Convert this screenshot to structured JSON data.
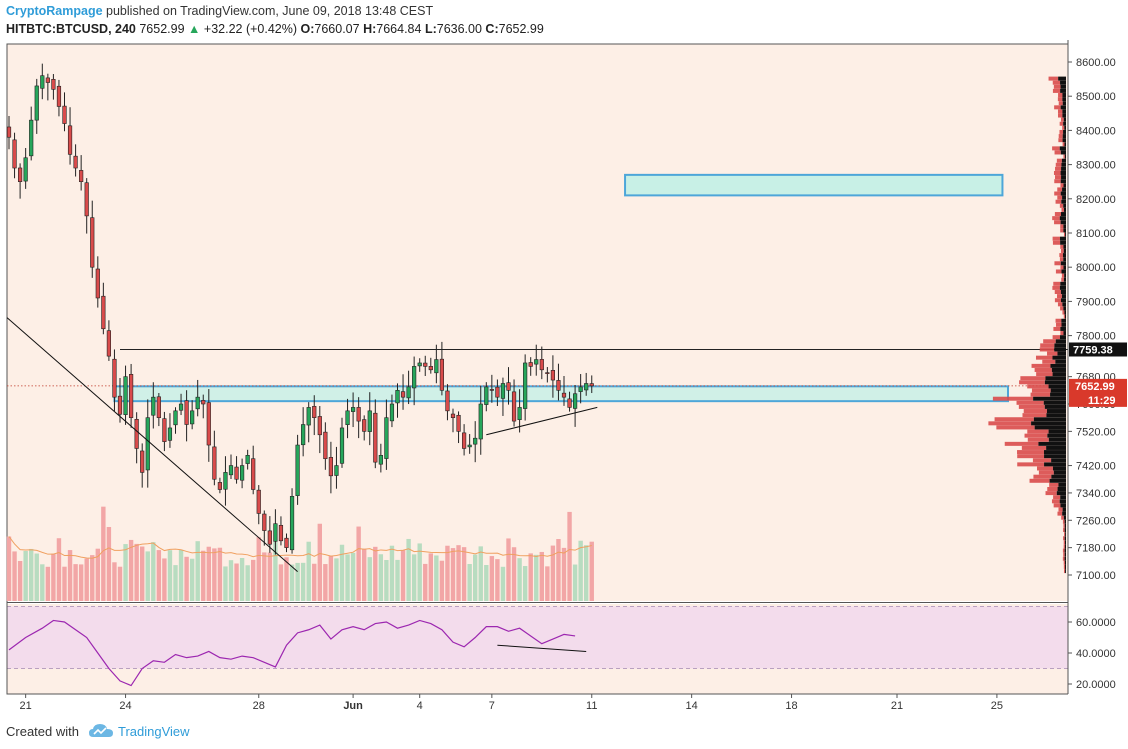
{
  "header": {
    "author": "CryptoRampage",
    "published_text": "published on TradingView.com, June 09, 2018 13:48 CEST",
    "symbol": "HITBTC:BTCUSD, 240",
    "last": "7652.99",
    "change_arrow": "▲",
    "change": "+32.22 (+0.42%)",
    "open_label": "O:",
    "open": "7660.07",
    "high_label": "H:",
    "high": "7664.84",
    "low_label": "L:",
    "low": "7636.00",
    "close_label": "C:",
    "close": "7652.99"
  },
  "footer": {
    "created_with": "Created with",
    "brand": "TradingView",
    "logo_icon": "tradingview-cloud-icon"
  },
  "colors": {
    "background": "#fdefe6",
    "up_candle": "#26a65b",
    "down_candle": "#d94b4b",
    "zone_fill": "#c8f0e6",
    "zone_stroke": "#4da6d9",
    "rsi_line": "#9c27b0",
    "rsi_band": "#f3dcec",
    "volume_up": "#b8dcc0",
    "volume_down": "#f2a6a6",
    "ma_line": "#f0a060",
    "author": "#2f9cd8"
  },
  "chart_data": [
    {
      "type": "candlestick",
      "title": "HITBTC:BTCUSD, 240",
      "y_axis_ticks": [
        8600,
        8500,
        8400,
        8300,
        8200,
        8100,
        8000,
        7900,
        7800,
        7680,
        7600,
        7520,
        7420,
        7340,
        7260,
        7180,
        7100
      ],
      "y_axis_tick_labels": [
        "8600.00",
        "8500.00",
        "8400.00",
        "8300.00",
        "8200.00",
        "8100.00",
        "8000.00",
        "7900.00",
        "7800.00",
        "7680.00",
        "7600.00",
        "7520.00",
        "7420.00",
        "7340.00",
        "7260.00",
        "7180.00",
        "7100.00"
      ],
      "ylim": [
        7040,
        8650
      ],
      "x_axis_ticks": [
        "21",
        "24",
        "28",
        "Jun",
        "4",
        "7",
        "11",
        "14",
        "18",
        "21",
        "25"
      ],
      "x_axis_tick_index": [
        3,
        21,
        45,
        62,
        74,
        87,
        105,
        123,
        141,
        160,
        178
      ],
      "last_price_label": "7652.99",
      "countdown_label": "11:29",
      "resistance_label": "7759.38",
      "resistance_level": 7759.38,
      "support_zone": [
        7620,
        7640
      ],
      "target_zone": [
        8210,
        8270
      ],
      "price_path": [
        [
          0,
          8380
        ],
        [
          1,
          8290
        ],
        [
          2,
          8250
        ],
        [
          3,
          8320
        ],
        [
          4,
          8430
        ],
        [
          5,
          8530
        ],
        [
          6,
          8560
        ],
        [
          7,
          8540
        ],
        [
          8,
          8520
        ],
        [
          9,
          8470
        ],
        [
          10,
          8420
        ],
        [
          11,
          8330
        ],
        [
          12,
          8290
        ],
        [
          13,
          8250
        ],
        [
          14,
          8150
        ],
        [
          15,
          8000
        ],
        [
          16,
          7910
        ],
        [
          17,
          7820
        ],
        [
          18,
          7740
        ],
        [
          19,
          7620
        ],
        [
          20,
          7570
        ],
        [
          21,
          7680
        ],
        [
          22,
          7560
        ],
        [
          23,
          7470
        ],
        [
          24,
          7400
        ],
        [
          25,
          7560
        ],
        [
          26,
          7620
        ],
        [
          27,
          7560
        ],
        [
          28,
          7490
        ],
        [
          29,
          7530
        ],
        [
          30,
          7580
        ],
        [
          31,
          7600
        ],
        [
          32,
          7540
        ],
        [
          33,
          7580
        ],
        [
          34,
          7620
        ],
        [
          35,
          7600
        ],
        [
          36,
          7480
        ],
        [
          37,
          7380
        ],
        [
          38,
          7350
        ],
        [
          39,
          7400
        ],
        [
          40,
          7420
        ],
        [
          41,
          7380
        ],
        [
          42,
          7420
        ],
        [
          43,
          7450
        ],
        [
          44,
          7350
        ],
        [
          45,
          7280
        ],
        [
          46,
          7230
        ],
        [
          47,
          7190
        ],
        [
          48,
          7250
        ],
        [
          49,
          7200
        ],
        [
          50,
          7180
        ],
        [
          51,
          7330
        ],
        [
          52,
          7480
        ],
        [
          53,
          7540
        ],
        [
          54,
          7590
        ],
        [
          55,
          7560
        ],
        [
          56,
          7510
        ],
        [
          57,
          7440
        ],
        [
          58,
          7390
        ],
        [
          59,
          7420
        ],
        [
          60,
          7530
        ],
        [
          61,
          7580
        ],
        [
          62,
          7590
        ],
        [
          63,
          7550
        ],
        [
          64,
          7520
        ],
        [
          65,
          7580
        ],
        [
          66,
          7430
        ],
        [
          67,
          7450
        ],
        [
          68,
          7560
        ],
        [
          69,
          7600
        ],
        [
          70,
          7640
        ],
        [
          71,
          7620
        ],
        [
          72,
          7650
        ],
        [
          73,
          7710
        ],
        [
          74,
          7720
        ],
        [
          75,
          7710
        ],
        [
          76,
          7700
        ],
        [
          77,
          7730
        ],
        [
          78,
          7640
        ],
        [
          79,
          7580
        ],
        [
          80,
          7560
        ],
        [
          81,
          7520
        ],
        [
          82,
          7470
        ],
        [
          83,
          7480
        ],
        [
          84,
          7500
        ],
        [
          85,
          7600
        ],
        [
          86,
          7650
        ],
        [
          87,
          7640
        ],
        [
          88,
          7620
        ],
        [
          89,
          7660
        ],
        [
          90,
          7640
        ],
        [
          91,
          7550
        ],
        [
          92,
          7590
        ],
        [
          93,
          7720
        ],
        [
          94,
          7710
        ],
        [
          95,
          7730
        ],
        [
          96,
          7700
        ],
        [
          97,
          7690
        ],
        [
          98,
          7670
        ],
        [
          99,
          7640
        ],
        [
          100,
          7620
        ],
        [
          101,
          7590
        ],
        [
          102,
          7630
        ],
        [
          103,
          7650
        ],
        [
          104,
          7660
        ],
        [
          105,
          7653
        ]
      ],
      "annotations": {
        "descending_trendline": [
          [
            0,
            7560
          ],
          [
            52,
            7110
          ]
        ],
        "rising_support_line": [
          [
            86,
            7510
          ],
          [
            106,
            7590
          ]
        ],
        "resistance_line_range": [
          20,
          186
        ],
        "support_zone_range": [
          19,
          180
        ],
        "target_zone_range": [
          111,
          179
        ]
      }
    },
    {
      "type": "bar",
      "title": "Volume",
      "ylim": [
        0,
        100
      ],
      "values_note": "relative volume per candle"
    },
    {
      "type": "line",
      "title": "RSI",
      "y_axis_ticks": [
        60,
        40,
        20
      ],
      "y_axis_tick_labels": [
        "60.0000",
        "40.0000",
        "20.0000"
      ],
      "ylim": [
        15,
        72
      ],
      "bands": [
        30,
        70
      ],
      "values": [
        [
          0,
          42
        ],
        [
          3,
          50
        ],
        [
          6,
          56
        ],
        [
          8,
          61
        ],
        [
          10,
          60
        ],
        [
          12,
          55
        ],
        [
          14,
          50
        ],
        [
          16,
          40
        ],
        [
          18,
          30
        ],
        [
          20,
          22
        ],
        [
          22,
          19
        ],
        [
          24,
          30
        ],
        [
          26,
          35
        ],
        [
          28,
          34
        ],
        [
          30,
          39
        ],
        [
          32,
          37
        ],
        [
          34,
          38
        ],
        [
          36,
          41
        ],
        [
          38,
          37
        ],
        [
          40,
          36
        ],
        [
          42,
          38
        ],
        [
          44,
          37
        ],
        [
          46,
          34
        ],
        [
          48,
          31
        ],
        [
          50,
          45
        ],
        [
          52,
          53
        ],
        [
          54,
          55
        ],
        [
          56,
          58
        ],
        [
          58,
          49
        ],
        [
          60,
          55
        ],
        [
          62,
          57
        ],
        [
          64,
          55
        ],
        [
          66,
          59
        ],
        [
          68,
          60
        ],
        [
          70,
          56
        ],
        [
          72,
          58
        ],
        [
          74,
          61
        ],
        [
          76,
          59
        ],
        [
          78,
          55
        ],
        [
          80,
          47
        ],
        [
          82,
          44
        ],
        [
          84,
          50
        ],
        [
          86,
          57
        ],
        [
          88,
          57
        ],
        [
          90,
          54
        ],
        [
          92,
          56
        ],
        [
          94,
          51
        ],
        [
          96,
          46
        ],
        [
          98,
          49
        ],
        [
          100,
          52
        ],
        [
          102,
          51
        ]
      ],
      "divergence_line": [
        [
          88,
          45
        ],
        [
          104,
          41
        ]
      ]
    }
  ]
}
